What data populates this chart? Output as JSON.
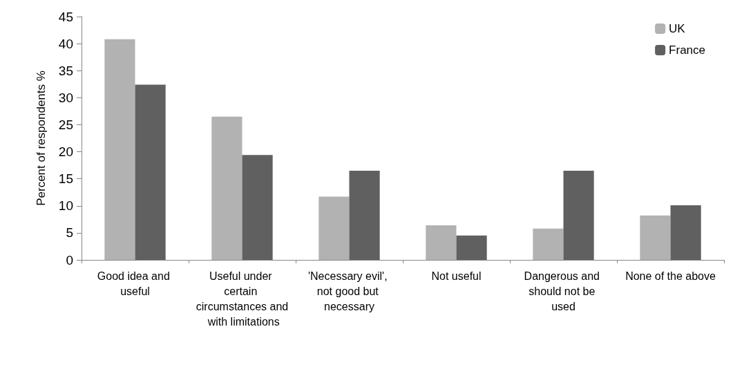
{
  "chart_data": {
    "type": "bar",
    "ylabel": "Percent of respondents %",
    "categories": [
      "Good idea and useful",
      "Useful under certain circumstances and with limitations",
      "'Necessary evil', not good but necessary",
      "Not useful",
      "Dangerous and should not be used",
      "None of the above"
    ],
    "series": [
      {
        "name": "UK",
        "color": "#b2b2b2",
        "values": [
          40.8,
          26.5,
          11.7,
          6.4,
          5.8,
          8.2
        ]
      },
      {
        "name": "France",
        "color": "#606060",
        "values": [
          32.4,
          19.4,
          16.5,
          4.5,
          16.5,
          10.1
        ]
      }
    ],
    "ylim": [
      0,
      45
    ],
    "yticks": [
      0,
      5,
      10,
      15,
      20,
      25,
      30,
      35,
      40,
      45
    ],
    "grid": false,
    "legend": "top right"
  }
}
